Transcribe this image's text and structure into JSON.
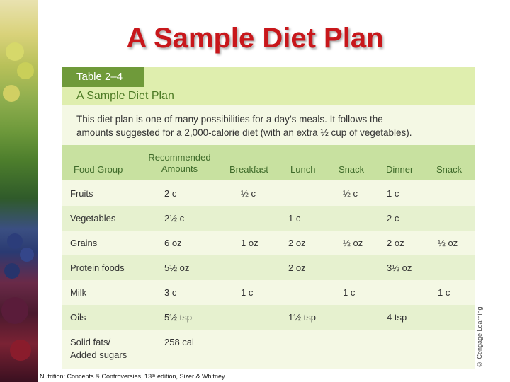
{
  "slide": {
    "title": "A Sample Diet Plan",
    "source": "Nutrition: Concepts & Controversies, 13ᵗʰ edition, Sizer & Whitney"
  },
  "table": {
    "tag": "Table 2–4",
    "name": "A Sample Diet Plan",
    "description_line1": "This diet plan is one of many possibilities for a day’s meals. It follows the",
    "description_line2": "amounts suggested for a 2,000-calorie diet (with an extra ½ cup of vegetables).",
    "columns": [
      "Food Group",
      "Recommended\nAmounts",
      "Breakfast",
      "Lunch",
      "Snack",
      "Dinner",
      "Snack"
    ],
    "rows": [
      {
        "group": "Fruits",
        "amount": "2 c",
        "breakfast": "½ c",
        "lunch": "",
        "snack1": "½ c",
        "dinner": "1 c",
        "snack2": ""
      },
      {
        "group": "Vegetables",
        "amount": "2½ c",
        "breakfast": "",
        "lunch": "1 c",
        "snack1": "",
        "dinner": "2 c",
        "snack2": ""
      },
      {
        "group": "Grains",
        "amount": "6 oz",
        "breakfast": "1 oz",
        "lunch": "2 oz",
        "snack1": "½ oz",
        "dinner": "2 oz",
        "snack2": "½ oz"
      },
      {
        "group": "Protein foods",
        "amount": "5½ oz",
        "breakfast": "",
        "lunch": "2 oz",
        "snack1": "",
        "dinner": "3½ oz",
        "snack2": ""
      },
      {
        "group": "Milk",
        "amount": "3 c",
        "breakfast": "1 c",
        "lunch": "",
        "snack1": "1 c",
        "dinner": "",
        "snack2": "1 c"
      },
      {
        "group": "Oils",
        "amount": "5½ tsp",
        "breakfast": "",
        "lunch": "1½ tsp",
        "snack1": "",
        "dinner": "4 tsp",
        "snack2": ""
      },
      {
        "group_line1": "Solid fats/",
        "group_line2": "Added sugars",
        "amount": "258 cal",
        "breakfast": "",
        "lunch": "",
        "snack1": "",
        "dinner": "",
        "snack2": ""
      }
    ],
    "credit": "© Cengage Learning"
  }
}
